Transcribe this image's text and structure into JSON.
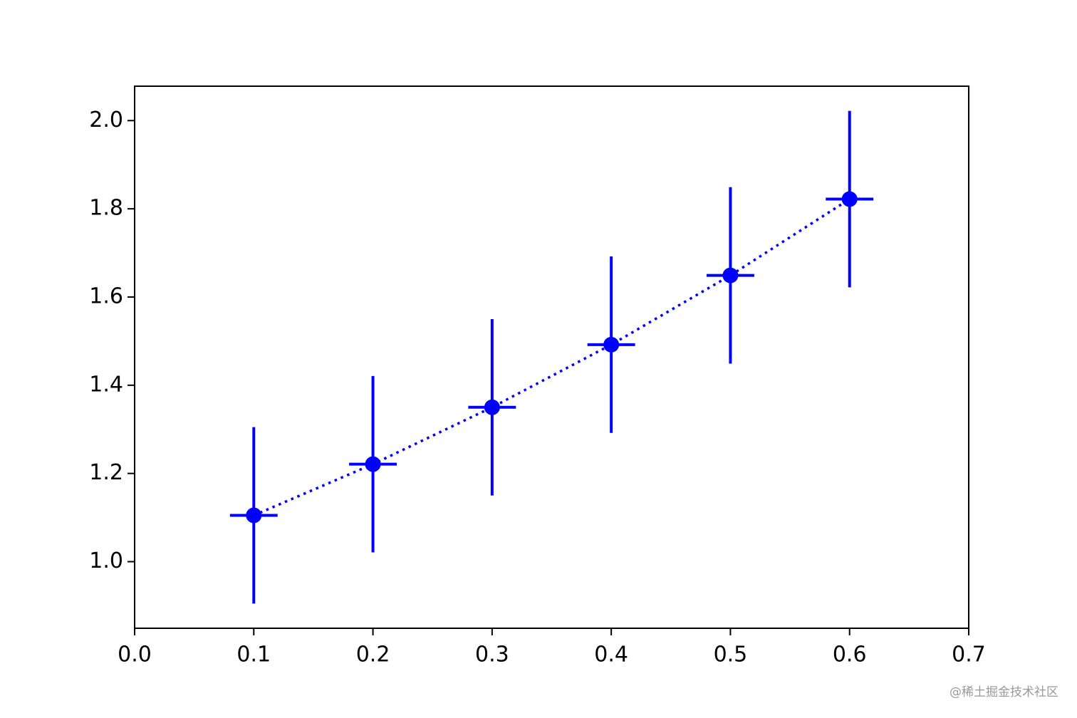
{
  "chart_data": {
    "type": "errorbar",
    "x": [
      0.1,
      0.2,
      0.3,
      0.4,
      0.5,
      0.6
    ],
    "series": [
      {
        "color": "#0000ff",
        "linestyle": "dotted",
        "values": [
          1.105,
          1.221,
          1.35,
          1.492,
          1.649,
          1.822
        ],
        "yerr": [
          0.2,
          0.2,
          0.2,
          0.2,
          0.2,
          0.2
        ],
        "xerr": [
          0.02,
          0.02,
          0.02,
          0.02,
          0.02,
          0.02
        ]
      }
    ],
    "xlim": [
      0,
      0.7
    ],
    "ylim": [
      0.849,
      2.078
    ],
    "xticks": [
      {
        "value": 0,
        "label": "0.0"
      },
      0.1,
      0.2,
      0.3,
      0.4,
      0.5,
      0.6,
      0.7
    ],
    "yticks": [
      {
        "value": 1,
        "label": "1.0"
      },
      1.2,
      1.4,
      1.6,
      1.8,
      {
        "value": 2,
        "label": "2.0"
      }
    ],
    "grid": false,
    "watermark": "@稀土掘金技术社区"
  }
}
